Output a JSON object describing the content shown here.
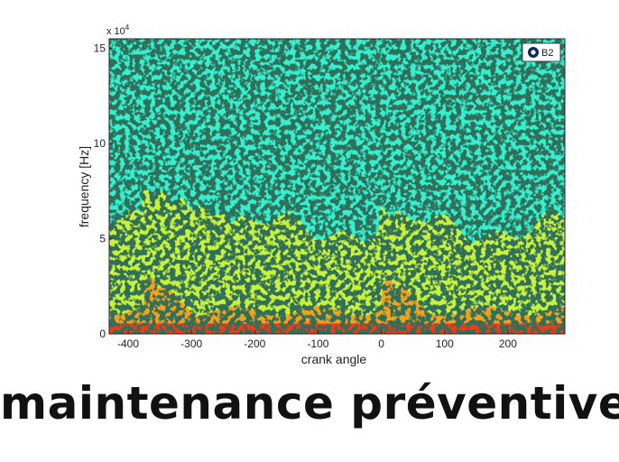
{
  "chart_data": {
    "type": "heatmap",
    "title": "",
    "xlabel": "crank angle",
    "ylabel": "frequency [Hz]",
    "xlim": [
      -430,
      290
    ],
    "ylim": [
      0,
      15.5
    ],
    "x_ticks": [
      -400,
      -300,
      -200,
      -100,
      0,
      100,
      200
    ],
    "y_ticks": [
      0,
      5,
      10,
      15
    ],
    "y_scale_label": "x 10",
    "y_scale_exponent": "4",
    "legend": {
      "label": "B2",
      "position": "top-right"
    },
    "grid": false,
    "colors": {
      "high_band": "#35efcf",
      "mid_band": "#c9f23c",
      "low_band": "#f7a11a",
      "peak_band": "#f23a14",
      "noise_dots": "#0b2a1e"
    },
    "bursts": [
      {
        "center_crank_angle": -370,
        "peak_frequency_e4": 7.6
      },
      {
        "center_crank_angle": 5,
        "peak_frequency_e4": 6.5
      }
    ]
  },
  "caption": "maintenance préventive"
}
